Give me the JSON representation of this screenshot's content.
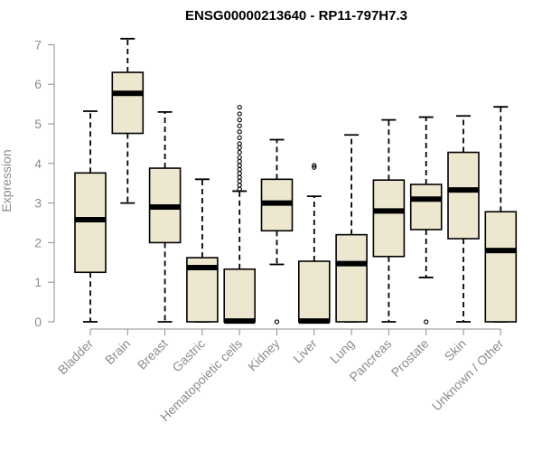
{
  "chart_data": {
    "type": "boxplot",
    "title": "ENSG00000213640 - RP11-797H7.3",
    "xlabel": "",
    "ylabel": "Expression",
    "ylim": [
      0,
      7
    ],
    "yticks": [
      0,
      1,
      2,
      3,
      4,
      5,
      6,
      7
    ],
    "box_color": "#EDE7CF",
    "categories": [
      "Bladder",
      "Brain",
      "Breast",
      "Gastric",
      "Hematopoietic cells",
      "Kidney",
      "Liver",
      "Lung",
      "Pancreas",
      "Prostate",
      "Skin",
      "Unknown / Other"
    ],
    "boxes": [
      {
        "min": 0,
        "q1": 1.25,
        "median": 2.58,
        "q3": 3.76,
        "max": 5.32,
        "outliers": []
      },
      {
        "min": 3.0,
        "q1": 4.76,
        "median": 5.77,
        "q3": 6.3,
        "max": 7.15,
        "outliers": []
      },
      {
        "min": 0,
        "q1": 2.0,
        "median": 2.9,
        "q3": 3.88,
        "max": 5.3,
        "outliers": []
      },
      {
        "min": 0,
        "q1": 0,
        "median": 1.37,
        "q3": 1.62,
        "max": 3.6,
        "outliers": []
      },
      {
        "min": 0,
        "q1": 0,
        "median": 0.02,
        "q3": 1.33,
        "max": 3.3,
        "outliers": [
          3.35,
          3.45,
          3.55,
          3.65,
          3.75,
          3.85,
          3.95,
          4.05,
          4.15,
          4.28,
          4.4,
          4.5,
          4.65,
          4.8,
          4.95,
          5.1,
          5.25,
          5.42
        ]
      },
      {
        "min": 1.45,
        "q1": 2.3,
        "median": 3.0,
        "q3": 3.6,
        "max": 4.6,
        "outliers": [
          0
        ]
      },
      {
        "min": 0,
        "q1": 0,
        "median": 0.02,
        "q3": 1.53,
        "max": 3.17,
        "outliers": [
          3.9,
          3.95
        ]
      },
      {
        "min": 0,
        "q1": 0,
        "median": 1.47,
        "q3": 2.2,
        "max": 4.72,
        "outliers": []
      },
      {
        "min": 0,
        "q1": 1.65,
        "median": 2.8,
        "q3": 3.58,
        "max": 5.1,
        "outliers": []
      },
      {
        "min": 1.12,
        "q1": 2.33,
        "median": 3.1,
        "q3": 3.47,
        "max": 5.17,
        "outliers": [
          0
        ]
      },
      {
        "min": 0,
        "q1": 2.1,
        "median": 3.33,
        "q3": 4.28,
        "max": 5.2,
        "outliers": []
      },
      {
        "min": 0,
        "q1": 0,
        "median": 1.8,
        "q3": 2.78,
        "max": 5.43,
        "outliers": []
      }
    ]
  }
}
